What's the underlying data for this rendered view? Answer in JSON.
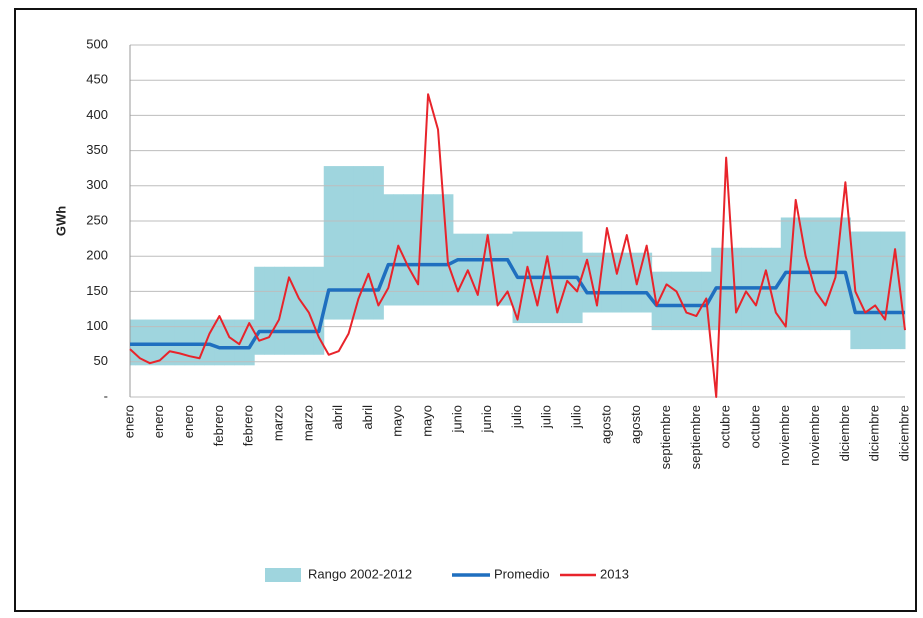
{
  "chart_data": {
    "type": "line",
    "y_label": "GWh",
    "categories": [
      "enero",
      null,
      null,
      "enero",
      null,
      null,
      "enero",
      null,
      null,
      "febrero",
      null,
      null,
      "febrero",
      null,
      null,
      "marzo",
      null,
      null,
      "marzo",
      null,
      null,
      "abril",
      null,
      null,
      "abril",
      null,
      null,
      "mayo",
      null,
      null,
      "mayo",
      null,
      null,
      "junio",
      null,
      null,
      "junio",
      null,
      null,
      "julio",
      null,
      null,
      "julio",
      null,
      null,
      "julio",
      null,
      null,
      "agosto",
      null,
      null,
      "agosto",
      null,
      null,
      "septiembre",
      null,
      null,
      "septiembre",
      null,
      null,
      "octubre",
      null,
      null,
      "octubre",
      null,
      null,
      "noviembre",
      null,
      null,
      "noviembre",
      null,
      null,
      "diciembre",
      null,
      null,
      "diciembre",
      null,
      null,
      "diciembre"
    ],
    "range": {
      "name": "Rango 2002-2012",
      "color": "#9fd5de",
      "low": [
        45,
        45,
        45,
        45,
        45,
        45,
        45,
        45,
        45,
        45,
        45,
        45,
        45,
        60,
        60,
        60,
        60,
        60,
        60,
        60,
        110,
        110,
        110,
        110,
        110,
        110,
        130,
        130,
        130,
        130,
        130,
        130,
        130,
        130,
        130,
        130,
        130,
        130,
        130,
        105,
        105,
        105,
        105,
        105,
        105,
        105,
        120,
        120,
        120,
        120,
        120,
        120,
        120,
        95,
        95,
        95,
        95,
        95,
        95,
        95,
        95,
        95,
        95,
        95,
        95,
        95,
        95,
        95,
        95,
        95,
        95,
        95,
        95,
        68,
        68,
        68,
        68,
        68,
        68
      ],
      "high": [
        110,
        110,
        110,
        110,
        110,
        110,
        110,
        110,
        110,
        110,
        110,
        110,
        110,
        185,
        185,
        185,
        185,
        185,
        185,
        185,
        328,
        328,
        328,
        328,
        328,
        328,
        288,
        288,
        288,
        288,
        288,
        288,
        288,
        232,
        232,
        232,
        232,
        232,
        232,
        235,
        235,
        235,
        235,
        235,
        235,
        235,
        205,
        205,
        205,
        205,
        205,
        205,
        205,
        178,
        178,
        178,
        178,
        178,
        178,
        212,
        212,
        212,
        212,
        212,
        212,
        212,
        255,
        255,
        255,
        255,
        255,
        255,
        255,
        235,
        235,
        235,
        235,
        235,
        235
      ]
    },
    "series": [
      {
        "name": "Promedio",
        "color": "#1f6fbf",
        "values": [
          75,
          75,
          75,
          75,
          75,
          75,
          75,
          75,
          75,
          70,
          70,
          70,
          70,
          93,
          93,
          93,
          93,
          93,
          93,
          93,
          152,
          152,
          152,
          152,
          152,
          152,
          188,
          188,
          188,
          188,
          188,
          188,
          188,
          195,
          195,
          195,
          195,
          195,
          195,
          170,
          170,
          170,
          170,
          170,
          170,
          170,
          148,
          148,
          148,
          148,
          148,
          148,
          148,
          130,
          130,
          130,
          130,
          130,
          130,
          155,
          155,
          155,
          155,
          155,
          155,
          155,
          177,
          177,
          177,
          177,
          177,
          177,
          177,
          120,
          120,
          120,
          120,
          120,
          120
        ]
      },
      {
        "name": "2013",
        "color": "#e8242b",
        "values": [
          68,
          55,
          48,
          52,
          65,
          62,
          58,
          55,
          90,
          115,
          85,
          75,
          105,
          80,
          85,
          110,
          170,
          140,
          120,
          85,
          60,
          65,
          90,
          140,
          175,
          130,
          155,
          215,
          185,
          160,
          430,
          380,
          190,
          150,
          180,
          145,
          230,
          130,
          150,
          110,
          185,
          130,
          200,
          120,
          165,
          150,
          195,
          130,
          240,
          175,
          230,
          160,
          215,
          130,
          160,
          150,
          120,
          115,
          140,
          0,
          340,
          120,
          150,
          130,
          180,
          120,
          100,
          280,
          200,
          150,
          130,
          170,
          305,
          150,
          120,
          130,
          110,
          210,
          95
        ]
      }
    ],
    "ylim": [
      0,
      500
    ],
    "yticks": [
      {
        "value": 0,
        "label": "-"
      },
      50,
      100,
      150,
      200,
      250,
      300,
      350,
      400,
      450,
      500
    ],
    "grid": true
  }
}
